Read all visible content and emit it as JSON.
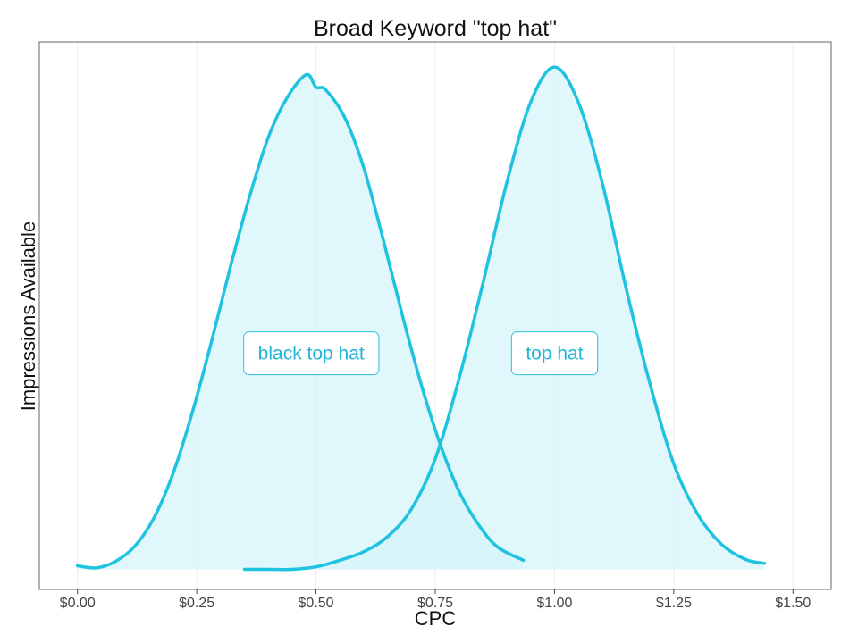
{
  "chart_data": {
    "type": "area",
    "title": "Broad Keyword \"top hat\"",
    "xlabel": "CPC",
    "ylabel": "Impressions Available",
    "x_tick_labels": [
      "$0.00",
      "$0.25",
      "$0.50",
      "$0.75",
      "$1.00",
      "$1.25",
      "$1.50"
    ],
    "x_ticks": [
      0,
      0.25,
      0.5,
      0.75,
      1.0,
      1.25,
      1.5
    ],
    "xlim": [
      -0.08,
      1.58
    ],
    "ylim": [
      -0.04,
      1.05
    ],
    "grid": true,
    "legend": "none",
    "series": [
      {
        "name": "black top hat",
        "color": "#1fc3e0",
        "fill": "#d6f4fa",
        "x": [
          0,
          0.04,
          0.08,
          0.12,
          0.16,
          0.2,
          0.24,
          0.28,
          0.32,
          0.36,
          0.4,
          0.44,
          0.48,
          0.5,
          0.52,
          0.56,
          0.6,
          0.64,
          0.68,
          0.72,
          0.76,
          0.8,
          0.84,
          0.88,
          0.935
        ],
        "y": [
          0.007,
          0.003,
          0.016,
          0.046,
          0.102,
          0.19,
          0.31,
          0.45,
          0.6,
          0.74,
          0.86,
          0.94,
          0.985,
          0.96,
          0.955,
          0.9,
          0.8,
          0.66,
          0.51,
          0.37,
          0.25,
          0.155,
          0.09,
          0.045,
          0.018
        ]
      },
      {
        "name": "top hat",
        "color": "#1fc3e0",
        "fill": "#d6f4fa",
        "x": [
          0.35,
          0.4,
          0.45,
          0.5,
          0.55,
          0.6,
          0.65,
          0.7,
          0.75,
          0.8,
          0.85,
          0.9,
          0.95,
          1.0,
          1.05,
          1.1,
          1.15,
          1.2,
          1.25,
          1.3,
          1.35,
          1.4,
          1.44
        ],
        "y": [
          0.0,
          0.0,
          0.0,
          0.005,
          0.018,
          0.035,
          0.065,
          0.12,
          0.22,
          0.38,
          0.57,
          0.77,
          0.93,
          1.0,
          0.93,
          0.77,
          0.56,
          0.37,
          0.21,
          0.11,
          0.05,
          0.02,
          0.012
        ]
      }
    ],
    "annotations": [
      {
        "text": "black top hat",
        "x": 0.49,
        "y": 0.43
      },
      {
        "text": "top hat",
        "x": 1.0,
        "y": 0.43
      }
    ],
    "colors": {
      "line": "#1fc3e0",
      "fill": "#d6f4fa",
      "label_text": "#20b6d6",
      "label_border": "#27bfdc",
      "grid": "#ececec",
      "panel_border": "#666666"
    }
  }
}
